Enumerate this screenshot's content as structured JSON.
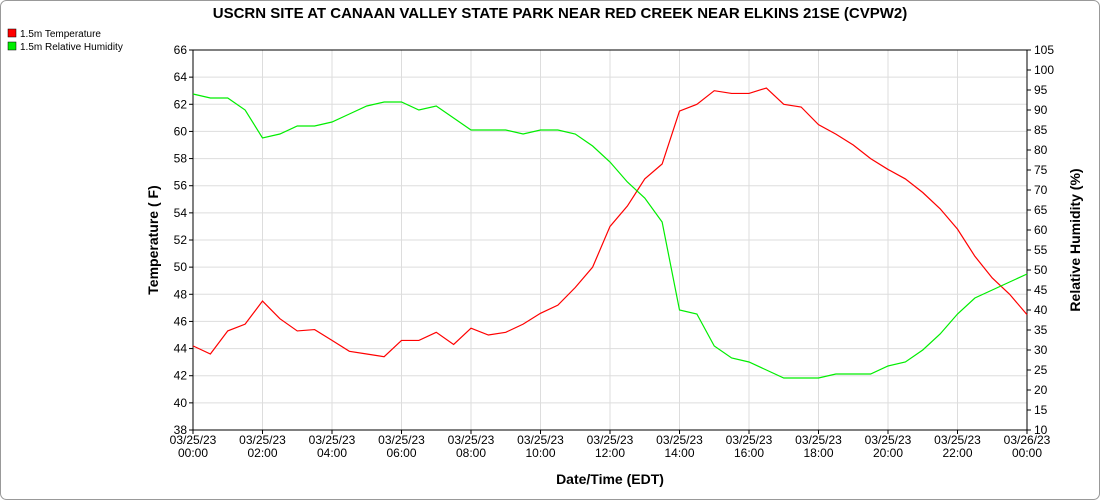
{
  "chart_data": {
    "type": "line",
    "title": "USCRN SITE AT CANAAN VALLEY STATE PARK NEAR RED CREEK NEAR ELKINS 21SE (CVPW2)",
    "xlabel": "Date/Time (EDT)",
    "ylabel": "Temperature ( F)",
    "y2label": "Relative Humidity (%)",
    "x": [
      "03/25/23 00:00",
      "03/25/23 00:30",
      "03/25/23 01:00",
      "03/25/23 01:30",
      "03/25/23 02:00",
      "03/25/23 02:30",
      "03/25/23 03:00",
      "03/25/23 03:30",
      "03/25/23 04:00",
      "03/25/23 04:30",
      "03/25/23 05:00",
      "03/25/23 05:30",
      "03/25/23 06:00",
      "03/25/23 06:30",
      "03/25/23 07:00",
      "03/25/23 07:30",
      "03/25/23 08:00",
      "03/25/23 08:30",
      "03/25/23 09:00",
      "03/25/23 09:30",
      "03/25/23 10:00",
      "03/25/23 10:30",
      "03/25/23 11:00",
      "03/25/23 11:30",
      "03/25/23 12:00",
      "03/25/23 12:30",
      "03/25/23 13:00",
      "03/25/23 13:30",
      "03/25/23 14:00",
      "03/25/23 14:30",
      "03/25/23 15:00",
      "03/25/23 15:30",
      "03/25/23 16:00",
      "03/25/23 16:30",
      "03/25/23 17:00",
      "03/25/23 17:30",
      "03/25/23 18:00",
      "03/25/23 18:30",
      "03/25/23 19:00",
      "03/25/23 19:30",
      "03/25/23 20:00",
      "03/25/23 20:30",
      "03/25/23 21:00",
      "03/25/23 21:30",
      "03/25/23 22:00",
      "03/25/23 22:30",
      "03/25/23 23:00",
      "03/25/23 23:30",
      "03/26/23 00:00"
    ],
    "series": [
      {
        "name": "1.5m Temperature",
        "color": "#ff0000",
        "axis": "y",
        "values": [
          44.2,
          43.6,
          45.3,
          45.8,
          47.5,
          46.2,
          45.3,
          45.4,
          44.6,
          43.8,
          43.6,
          43.4,
          44.6,
          44.6,
          45.2,
          44.3,
          45.5,
          45.0,
          45.2,
          45.8,
          46.6,
          47.2,
          48.5,
          50.0,
          53.0,
          54.5,
          56.5,
          57.6,
          61.5,
          62.0,
          63.0,
          62.8,
          62.8,
          63.2,
          62.0,
          61.8,
          60.5,
          59.8,
          59.0,
          58.0,
          57.2,
          56.5,
          55.5,
          54.3,
          52.8,
          50.8,
          49.2,
          48.0,
          46.5
        ]
      },
      {
        "name": "1.5m Relative Humidity",
        "color": "#00ee00",
        "axis": "y2",
        "values": [
          94,
          93,
          93,
          90,
          83,
          84,
          86,
          86,
          87,
          89,
          91,
          92,
          92,
          90,
          91,
          88,
          85,
          85,
          85,
          84,
          85,
          85,
          84,
          81,
          77,
          72,
          68,
          62,
          40,
          39,
          31,
          28,
          27,
          25,
          23,
          23,
          23,
          24,
          24,
          24,
          26,
          27,
          30,
          34,
          39,
          43,
          45,
          47,
          49
        ]
      }
    ],
    "xlim": [
      "03/25/23 00:00",
      "03/26/23 00:00"
    ],
    "xticks": [
      "03/25/23 00:00",
      "03/25/23 02:00",
      "03/25/23 04:00",
      "03/25/23 06:00",
      "03/25/23 08:00",
      "03/25/23 10:00",
      "03/25/23 12:00",
      "03/25/23 14:00",
      "03/25/23 16:00",
      "03/25/23 18:00",
      "03/25/23 20:00",
      "03/25/23 22:00",
      "03/26/23 00:00"
    ],
    "ylim": [
      38,
      66
    ],
    "yticks": [
      38,
      40,
      42,
      44,
      46,
      48,
      50,
      52,
      54,
      56,
      58,
      60,
      62,
      64,
      66
    ],
    "y2lim": [
      10,
      105
    ],
    "y2ticks": [
      10,
      15,
      20,
      25,
      30,
      35,
      40,
      45,
      50,
      55,
      60,
      65,
      70,
      75,
      80,
      85,
      90,
      95,
      100,
      105
    ],
    "grid": true,
    "legend": "top-left"
  }
}
